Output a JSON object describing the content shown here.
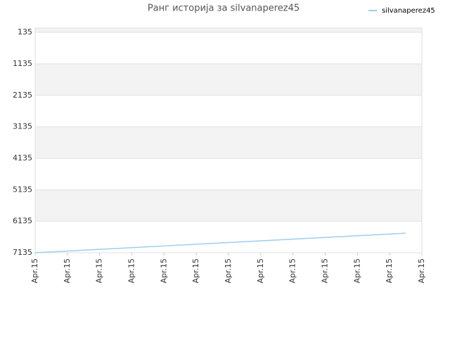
{
  "chart_data": {
    "type": "line",
    "title": "Ранг историја за silvanaperez45",
    "x": [
      0,
      0.5,
      1,
      1.5,
      2,
      2.5,
      3,
      3.5,
      4,
      4.5,
      5,
      5.5,
      6,
      6.5,
      7,
      7.5,
      8,
      8.5,
      9,
      9.5,
      10,
      10.5,
      11,
      11.5
    ],
    "series": [
      {
        "name": "silvanaperez45",
        "color": "#9fcdf0",
        "values": [
          7135,
          7108,
          7081,
          7054,
          7027,
          7000,
          6973,
          6946,
          6919,
          6892,
          6865,
          6838,
          6811,
          6784,
          6757,
          6730,
          6703,
          6676,
          6649,
          6622,
          6595,
          6568,
          6541,
          6514
        ]
      }
    ],
    "xlim": [
      0,
      12
    ],
    "xticks": [
      {
        "value": 0,
        "label": "Apr.15"
      },
      {
        "value": 1,
        "label": "Apr.15"
      },
      {
        "value": 2,
        "label": "Apr.15"
      },
      {
        "value": 3,
        "label": "Apr.15"
      },
      {
        "value": 4,
        "label": "Apr.15"
      },
      {
        "value": 5,
        "label": "Apr.15"
      },
      {
        "value": 6,
        "label": "Apr.15"
      },
      {
        "value": 7,
        "label": "Apr.15"
      },
      {
        "value": 8,
        "label": "Apr.15"
      },
      {
        "value": 9,
        "label": "Apr.15"
      },
      {
        "value": 10,
        "label": "Apr.15"
      },
      {
        "value": 11,
        "label": "Apr.15"
      },
      {
        "value": 12,
        "label": "Apr.15"
      }
    ],
    "ylim": [
      7135,
      0
    ],
    "yticks": [
      135,
      1135,
      2135,
      3135,
      4135,
      5135,
      6135,
      7135
    ],
    "grid": true,
    "legend": "top-right"
  }
}
